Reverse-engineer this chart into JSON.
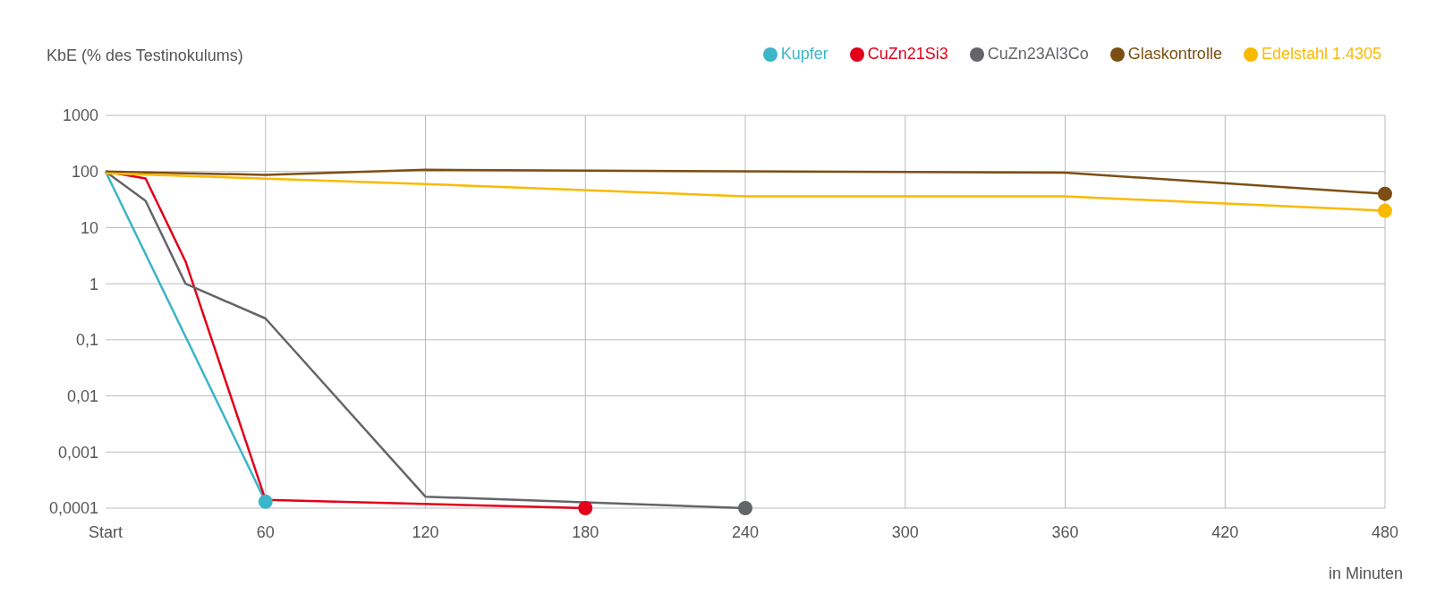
{
  "chart_data": {
    "type": "line",
    "ylabel": "KbE (% des Testinokulums)",
    "xlabel": "in Minuten",
    "log": "y",
    "grid": true,
    "legend": "top right",
    "line_style": "solid",
    "xlim": [
      0,
      480
    ],
    "xticks": [
      {
        "value": 0,
        "label": "Start"
      },
      60,
      120,
      180,
      240,
      300,
      360,
      420,
      480
    ],
    "ylim": [
      0.0001,
      1000
    ],
    "yticks": [
      {
        "value": 1000,
        "label": "1000"
      },
      {
        "value": 100,
        "label": "100"
      },
      {
        "value": 10,
        "label": "10"
      },
      {
        "value": 1,
        "label": "1"
      },
      {
        "value": 0.1,
        "label": "0,1"
      },
      {
        "value": 0.01,
        "label": "0,01"
      },
      {
        "value": 0.001,
        "label": "0,001"
      },
      {
        "value": 0.0001,
        "label": "0,0001"
      }
    ],
    "series": [
      {
        "name": "Kupfer",
        "color": "#3bb5c8",
        "x": [
          0,
          60
        ],
        "values": [
          100,
          0.00013
        ]
      },
      {
        "name": "CuZn21Si3",
        "color": "#e2001a",
        "x": [
          0,
          15,
          30,
          60,
          180
        ],
        "values": [
          100,
          75,
          2.5,
          0.00014,
          0.0001
        ]
      },
      {
        "name": "CuZn23Al3Co",
        "color": "#646569",
        "x": [
          0,
          15,
          30,
          60,
          120,
          240
        ],
        "values": [
          100,
          30,
          1,
          0.24,
          0.00016,
          0.0001
        ]
      },
      {
        "name": "Glaskontrolle",
        "color": "#7b4f14",
        "x": [
          0,
          60,
          120,
          360,
          480
        ],
        "values": [
          100,
          87,
          107,
          95,
          40
        ]
      },
      {
        "name": "Edelstahl 1.4305",
        "color": "#fbb900",
        "x": [
          0,
          120,
          240,
          360,
          480
        ],
        "values": [
          93,
          60,
          36,
          36,
          20
        ]
      }
    ]
  }
}
